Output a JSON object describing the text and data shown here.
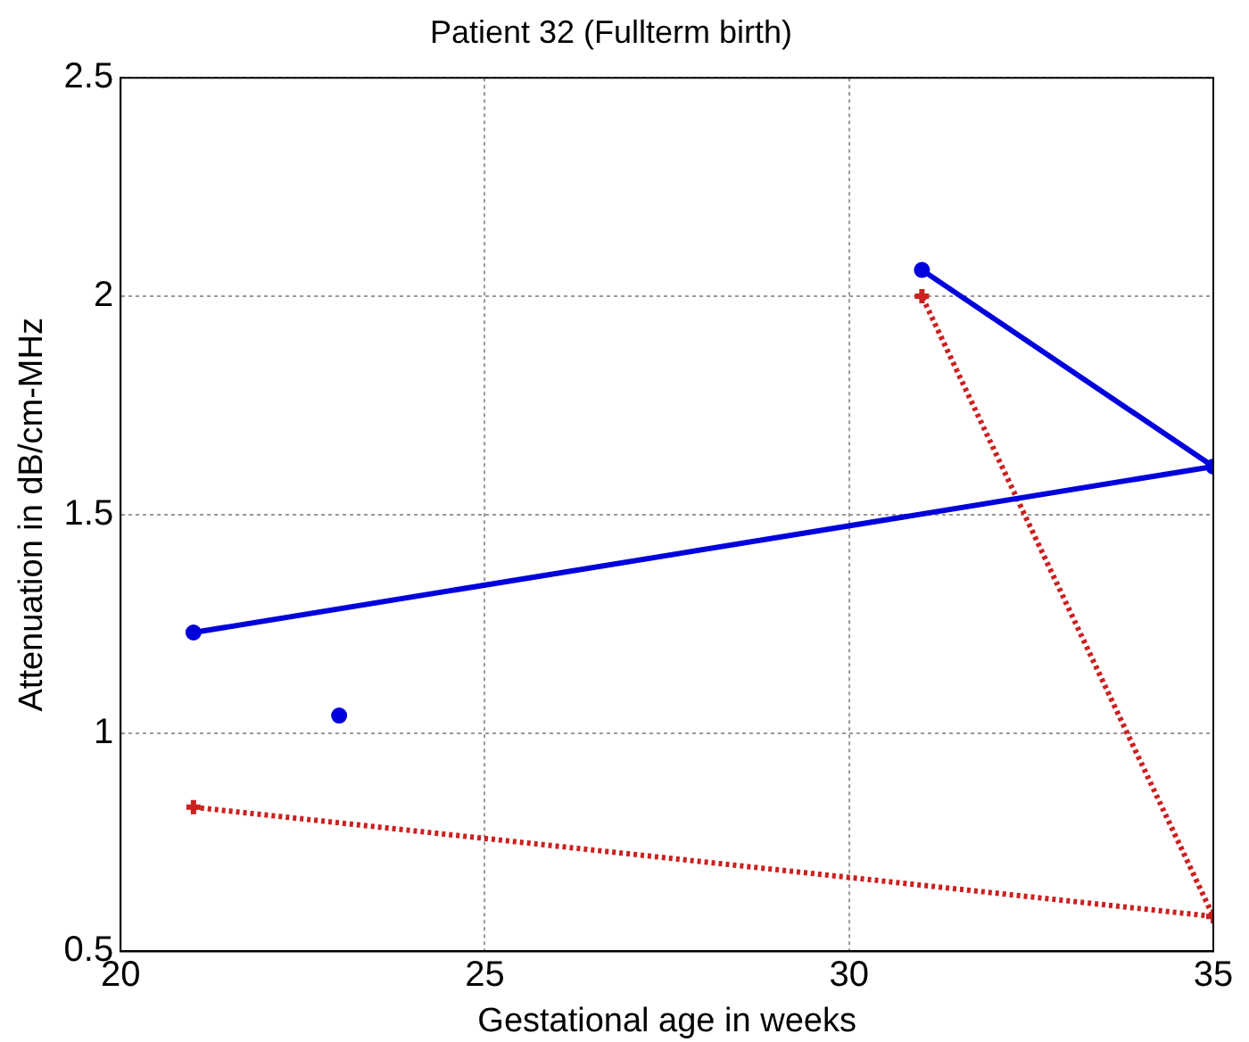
{
  "chart_data": {
    "type": "line",
    "title": "Patient 32 (Fullterm birth)",
    "xlabel": "Gestational age in weeks",
    "ylabel": "Attenuation in dB/cm-MHz",
    "xlim": [
      20,
      35
    ],
    "xticks": [
      20,
      25,
      30,
      35
    ],
    "ylim": [
      0.5,
      2.5
    ],
    "yticks": [
      0.5,
      1,
      1.5,
      2,
      2.5
    ],
    "grid": true,
    "legend": false,
    "series": [
      {
        "type": "line",
        "color": "#0000dd",
        "x": [
          21,
          35,
          31
        ],
        "values": [
          1.23,
          1.61,
          2.06
        ],
        "marker": "circle",
        "line_style": "solid"
      },
      {
        "type": "scatter",
        "color": "#0000dd",
        "x": [
          23
        ],
        "values": [
          1.04
        ],
        "marker": "circle"
      },
      {
        "type": "line",
        "color": "#cc2020",
        "x": [
          21,
          35,
          31
        ],
        "values": [
          0.83,
          0.58,
          2.0
        ],
        "marker": "cross",
        "line_style": "dotted"
      }
    ]
  }
}
